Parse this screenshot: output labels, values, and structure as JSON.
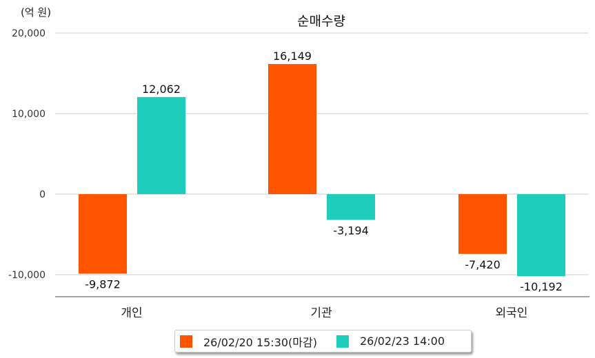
{
  "chart_data": {
    "type": "bar",
    "title": "순매수량",
    "unit_label": "(억 원)",
    "categories": [
      "개인",
      "기관",
      "외국인"
    ],
    "series": [
      {
        "name": "26/02/20 15:30(마감)",
        "color": "#FF5500",
        "values": [
          -9872,
          16149,
          -7420
        ],
        "labels": [
          "-9,872",
          "16,149",
          "-7,420"
        ]
      },
      {
        "name": "26/02/23 14:00",
        "color": "#1ECDBB",
        "values": [
          12062,
          -3194,
          -10192
        ],
        "labels": [
          "12,062",
          "-3,194",
          "-10,192"
        ]
      }
    ],
    "yticks": [
      20000,
      10000,
      0,
      -10000
    ],
    "ytick_labels": [
      "20,000",
      "10,000",
      "0",
      "-10,000"
    ],
    "ylim": [
      -12500,
      20000
    ],
    "grid": true,
    "legend_position": "bottom"
  }
}
